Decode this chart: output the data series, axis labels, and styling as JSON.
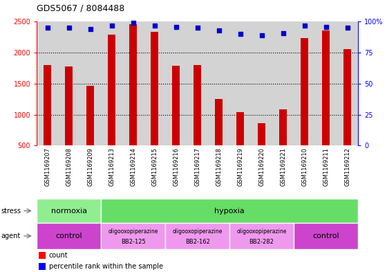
{
  "title": "GDS5067 / 8084488",
  "samples": [
    "GSM1169207",
    "GSM1169208",
    "GSM1169209",
    "GSM1169213",
    "GSM1169214",
    "GSM1169215",
    "GSM1169216",
    "GSM1169217",
    "GSM1169218",
    "GSM1169219",
    "GSM1169220",
    "GSM1169221",
    "GSM1169210",
    "GSM1169211",
    "GSM1169212"
  ],
  "counts": [
    1800,
    1780,
    1460,
    2290,
    2460,
    2340,
    1790,
    1800,
    1250,
    1040,
    860,
    1090,
    2240,
    2360,
    2060
  ],
  "percentiles": [
    95,
    95,
    94,
    97,
    99,
    97,
    96,
    95,
    93,
    90,
    89,
    91,
    97,
    96,
    95
  ],
  "ylim_left": [
    500,
    2500
  ],
  "ylim_right": [
    0,
    100
  ],
  "bar_color": "#cc0000",
  "dot_color": "#0000cc",
  "bg_color": "#d3d3d3",
  "stress_groups": [
    {
      "label": "normoxia",
      "start": 0,
      "end": 3,
      "color": "#90ee90"
    },
    {
      "label": "hypoxia",
      "start": 3,
      "end": 15,
      "color": "#66dd66"
    }
  ],
  "agent_groups": [
    {
      "label": "control",
      "start": 0,
      "end": 3,
      "color": "#cc44cc"
    },
    {
      "label": "oligooxopiperazine\nBB2-125",
      "start": 3,
      "end": 6,
      "color": "#ee99ee"
    },
    {
      "label": "oligooxopiperazine\nBB2-162",
      "start": 6,
      "end": 9,
      "color": "#ee99ee"
    },
    {
      "label": "oligooxopiperazine\nBB2-282",
      "start": 9,
      "end": 12,
      "color": "#ee99ee"
    },
    {
      "label": "control",
      "start": 12,
      "end": 15,
      "color": "#cc44cc"
    }
  ],
  "left_yticks": [
    500,
    1000,
    1500,
    2000,
    2500
  ],
  "right_yticks": [
    0,
    25,
    50,
    75,
    100
  ],
  "right_yticklabels": [
    "0",
    "25",
    "50",
    "75",
    "100%"
  ]
}
